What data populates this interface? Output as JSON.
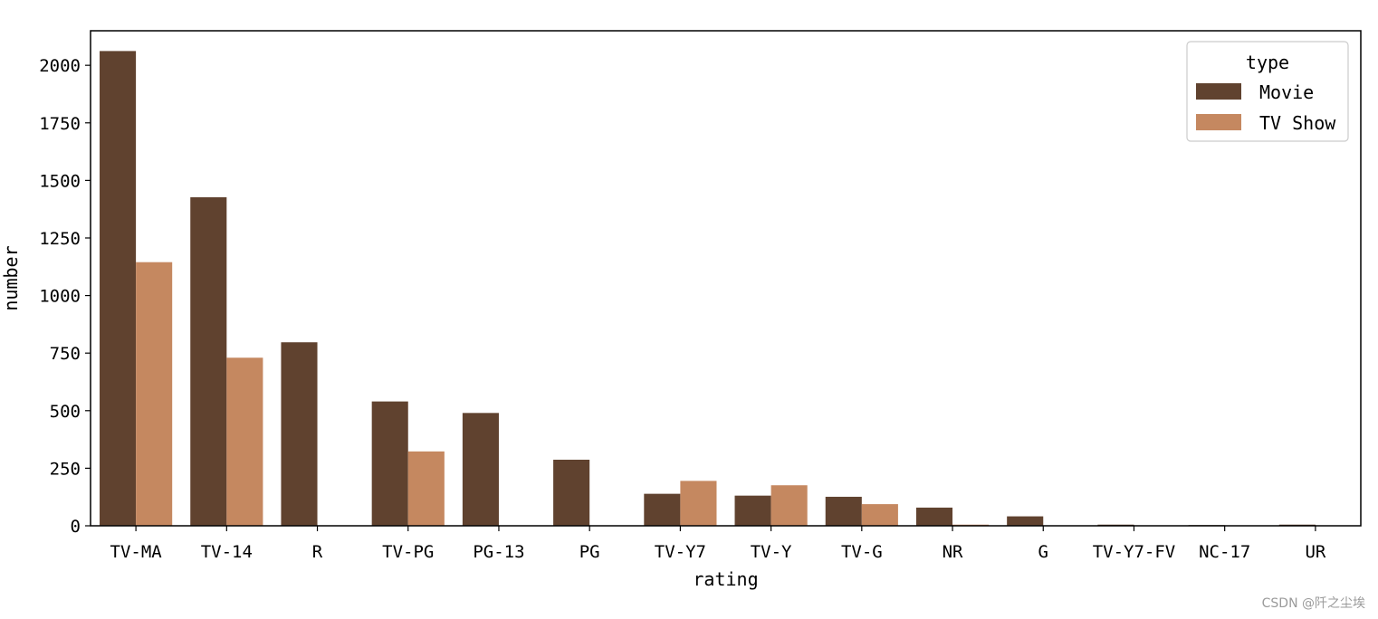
{
  "chart_data": {
    "type": "bar",
    "xlabel": "rating",
    "ylabel": "number",
    "categories": [
      "TV-MA",
      "TV-14",
      "R",
      "TV-PG",
      "PG-13",
      "PG",
      "TV-Y7",
      "TV-Y",
      "TV-G",
      "NR",
      "G",
      "TV-Y7-FV",
      "NC-17",
      "UR"
    ],
    "series": [
      {
        "name": "Movie",
        "color": "#60422f",
        "values": [
          2062,
          1427,
          797,
          540,
          490,
          287,
          139,
          131,
          126,
          79,
          41,
          5,
          3,
          5
        ]
      },
      {
        "name": "TV Show",
        "color": "#c58860",
        "values": [
          1145,
          730,
          2,
          323,
          0,
          0,
          195,
          176,
          94,
          5,
          0,
          1,
          0,
          0
        ]
      }
    ],
    "ylim": [
      0,
      2150
    ],
    "yticks": [
      0,
      250,
      500,
      750,
      1000,
      1250,
      1500,
      1750,
      2000
    ],
    "legend": {
      "title": "type",
      "placement": "top-right"
    },
    "grid": false
  },
  "watermark": "CSDN @阡之尘埃"
}
